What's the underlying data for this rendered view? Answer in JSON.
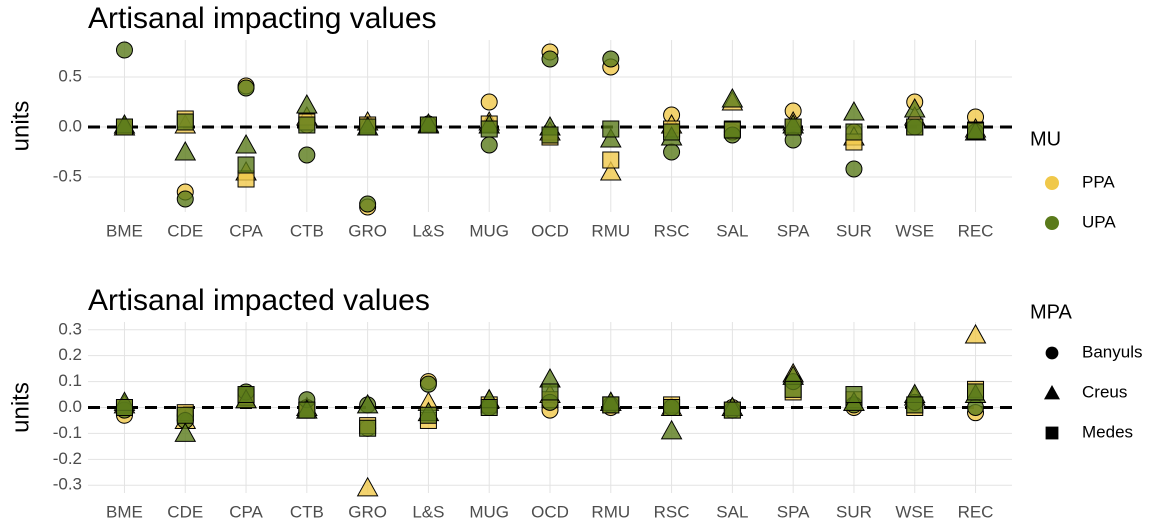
{
  "chart_data": [
    {
      "type": "scatter",
      "title": "Artisanal impacting values",
      "ylabel": "units",
      "categories": [
        "BME",
        "CDE",
        "CPA",
        "CTB",
        "GRO",
        "L&S",
        "MUG",
        "OCD",
        "RMU",
        "RSC",
        "SAL",
        "SPA",
        "SUR",
        "WSE",
        "REC"
      ],
      "ylim": [
        -0.85,
        0.87
      ],
      "yticks": [
        -0.5,
        {
          "value": 0,
          "label": "0.0"
        },
        0.5
      ],
      "grid": true,
      "hline": 0,
      "alpha": 0.8,
      "series": [
        {
          "color": "#f0c84a",
          "shape": "circle",
          "values": [
            0,
            -0.65,
            0.41,
            0.02,
            -0.8,
            0.03,
            0.25,
            0.75,
            0.6,
            0.12,
            -0.05,
            0.16,
            -0.05,
            0.25,
            0.1
          ]
        },
        {
          "color": "#f0c84a",
          "shape": "triangle",
          "values": [
            0,
            0.02,
            -0.45,
            0.1,
            0.05,
            0.02,
            0.05,
            -0.05,
            -0.45,
            0.02,
            0.25,
            0.05,
            -0.1,
            0.1,
            -0.02
          ]
        },
        {
          "color": "#f0c84a",
          "shape": "square",
          "values": [
            0,
            0.08,
            -0.52,
            0.05,
            0.02,
            0.02,
            0.03,
            -0.1,
            -0.33,
            -0.02,
            -0.02,
            0,
            -0.15,
            0,
            -0.03
          ]
        },
        {
          "color": "#5a7a1a",
          "shape": "circle",
          "values": [
            0.77,
            -0.72,
            0.39,
            -0.28,
            -0.77,
            0.03,
            -0.18,
            0.68,
            0.68,
            -0.25,
            -0.08,
            -0.13,
            -0.42,
            0,
            -0.05
          ]
        },
        {
          "color": "#5a7a1a",
          "shape": "triangle",
          "values": [
            0.02,
            -0.25,
            -0.18,
            0.22,
            0,
            0.03,
            0.02,
            0,
            -0.12,
            -0.1,
            0.28,
            0.02,
            0.15,
            0.18,
            -0.05
          ]
        },
        {
          "color": "#5a7a1a",
          "shape": "square",
          "values": [
            0,
            0.05,
            -0.38,
            0.02,
            0,
            0.02,
            -0.02,
            -0.08,
            -0.02,
            -0.05,
            -0.03,
            0,
            -0.05,
            0,
            -0.04
          ]
        }
      ]
    },
    {
      "type": "scatter",
      "title": "Artisanal impacted values",
      "ylabel": "units",
      "categories": [
        "BME",
        "CDE",
        "CPA",
        "CTB",
        "GRO",
        "L&S",
        "MUG",
        "OCD",
        "RMU",
        "RSC",
        "SAL",
        "SPA",
        "SUR",
        "WSE",
        "REC"
      ],
      "ylim": [
        -0.33,
        0.33
      ],
      "yticks": [
        -0.3,
        -0.2,
        -0.1,
        {
          "value": 0,
          "label": "0.0"
        },
        0.1,
        0.2,
        0.3
      ],
      "grid": true,
      "hline": 0,
      "alpha": 0.8,
      "series": [
        {
          "color": "#f0c84a",
          "shape": "circle",
          "values": [
            -0.03,
            -0.03,
            0.05,
            0,
            -0.08,
            0.1,
            0,
            -0.01,
            0,
            0,
            0,
            0.1,
            0,
            0.02,
            -0.02
          ]
        },
        {
          "color": "#f0c84a",
          "shape": "triangle",
          "values": [
            0.01,
            -0.05,
            0.03,
            0,
            -0.31,
            0.02,
            0.03,
            0.05,
            0.02,
            0,
            0,
            0.13,
            0.02,
            0.04,
            0.28
          ]
        },
        {
          "color": "#f0c84a",
          "shape": "square",
          "values": [
            0,
            -0.02,
            0.04,
            -0.01,
            -0.07,
            -0.05,
            0.01,
            0.03,
            0.01,
            0.01,
            -0.01,
            0.06,
            0.03,
            0,
            0.07
          ]
        },
        {
          "color": "#5a7a1a",
          "shape": "circle",
          "values": [
            -0.01,
            -0.05,
            0.06,
            0.03,
            0.01,
            0.09,
            0,
            0.02,
            0.01,
            0,
            -0.01,
            0.1,
            0.01,
            0.02,
            0
          ]
        },
        {
          "color": "#5a7a1a",
          "shape": "triangle",
          "values": [
            0.02,
            -0.1,
            0.03,
            -0.01,
            0.01,
            -0.02,
            0.03,
            0.11,
            0.02,
            -0.09,
            0,
            0.12,
            0.02,
            0.05,
            0.05
          ]
        },
        {
          "color": "#5a7a1a",
          "shape": "square",
          "values": [
            0,
            -0.03,
            0.05,
            -0.01,
            -0.08,
            -0.03,
            0,
            0.06,
            0.01,
            0,
            -0.01,
            0.07,
            0.05,
            0.01,
            0.06
          ]
        }
      ]
    }
  ],
  "legends": [
    {
      "title": "MU",
      "items": [
        {
          "label": "PPA",
          "color": "#f0c84a"
        },
        {
          "label": "UPA",
          "color": "#5a7a1a"
        }
      ]
    },
    {
      "title": "MPA",
      "items": [
        {
          "label": "Banyuls",
          "shape": "circle"
        },
        {
          "label": "Creus",
          "shape": "triangle"
        },
        {
          "label": "Medes",
          "shape": "square"
        }
      ]
    }
  ]
}
